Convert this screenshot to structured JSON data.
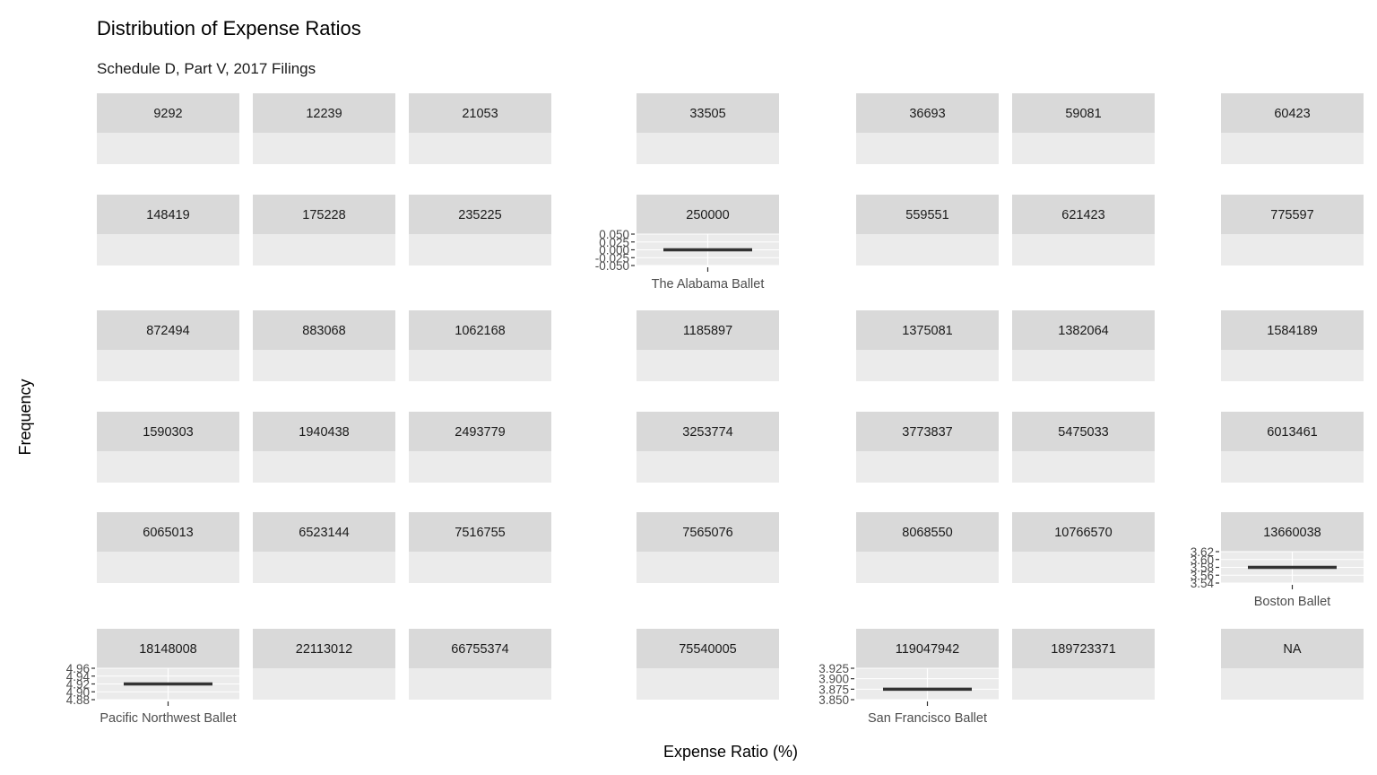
{
  "chart_data": {
    "type": "boxplot",
    "title": "Distribution of Expense Ratios",
    "subtitle": "Schedule D, Part V, 2017 Filings",
    "xlabel": "Expense Ratio (%)",
    "ylabel": "Frequency",
    "grid": true,
    "facet_strips": [
      [
        "9292",
        "12239",
        "21053",
        "33505",
        "36693",
        "59081",
        "60423"
      ],
      [
        "148419",
        "175228",
        "235225",
        "250000",
        "559551",
        "621423",
        "775597"
      ],
      [
        "872494",
        "883068",
        "1062168",
        "1185897",
        "1375081",
        "1382064",
        "1584189"
      ],
      [
        "1590303",
        "1940438",
        "2493779",
        "3253774",
        "3773837",
        "5475033",
        "6013461"
      ],
      [
        "6065013",
        "6523144",
        "7516755",
        "7565076",
        "8068550",
        "10766570",
        "13660038"
      ],
      [
        "18148008",
        "22113012",
        "66755374",
        "75540005",
        "119047942",
        "189723371",
        "NA"
      ]
    ],
    "panels_with_data": [
      {
        "facet": "250000",
        "category": "The Alabama Ballet",
        "value": 0,
        "y_ticks": [
          "0.050",
          "0.025",
          "0.000",
          "-0.025",
          "-0.050"
        ],
        "ylim": [
          -0.05,
          0.05
        ]
      },
      {
        "facet": "13660038",
        "category": "Boston Ballet",
        "value": 3.58,
        "y_ticks": [
          "3.62",
          "3.60",
          "3.58",
          "3.56",
          "3.54"
        ],
        "ylim": [
          3.54,
          3.62
        ]
      },
      {
        "facet": "18148008",
        "category": "Pacific Northwest Ballet",
        "value": 4.92,
        "y_ticks": [
          "4.96",
          "4.94",
          "4.92",
          "4.90",
          "4.88"
        ],
        "ylim": [
          4.88,
          4.96
        ]
      },
      {
        "facet": "119047942",
        "category": "San Francisco Ballet",
        "value": 3.875,
        "y_ticks": [
          "3.925",
          "3.900",
          "3.875",
          "3.850"
        ],
        "ylim": [
          3.85,
          3.925
        ]
      }
    ],
    "colors": {
      "strip_bg": "#d9d9d9",
      "panel_bg": "#ebebeb",
      "grid": "#ffffff",
      "mark": "#333333",
      "tick_text": "#4d4d4d"
    }
  }
}
